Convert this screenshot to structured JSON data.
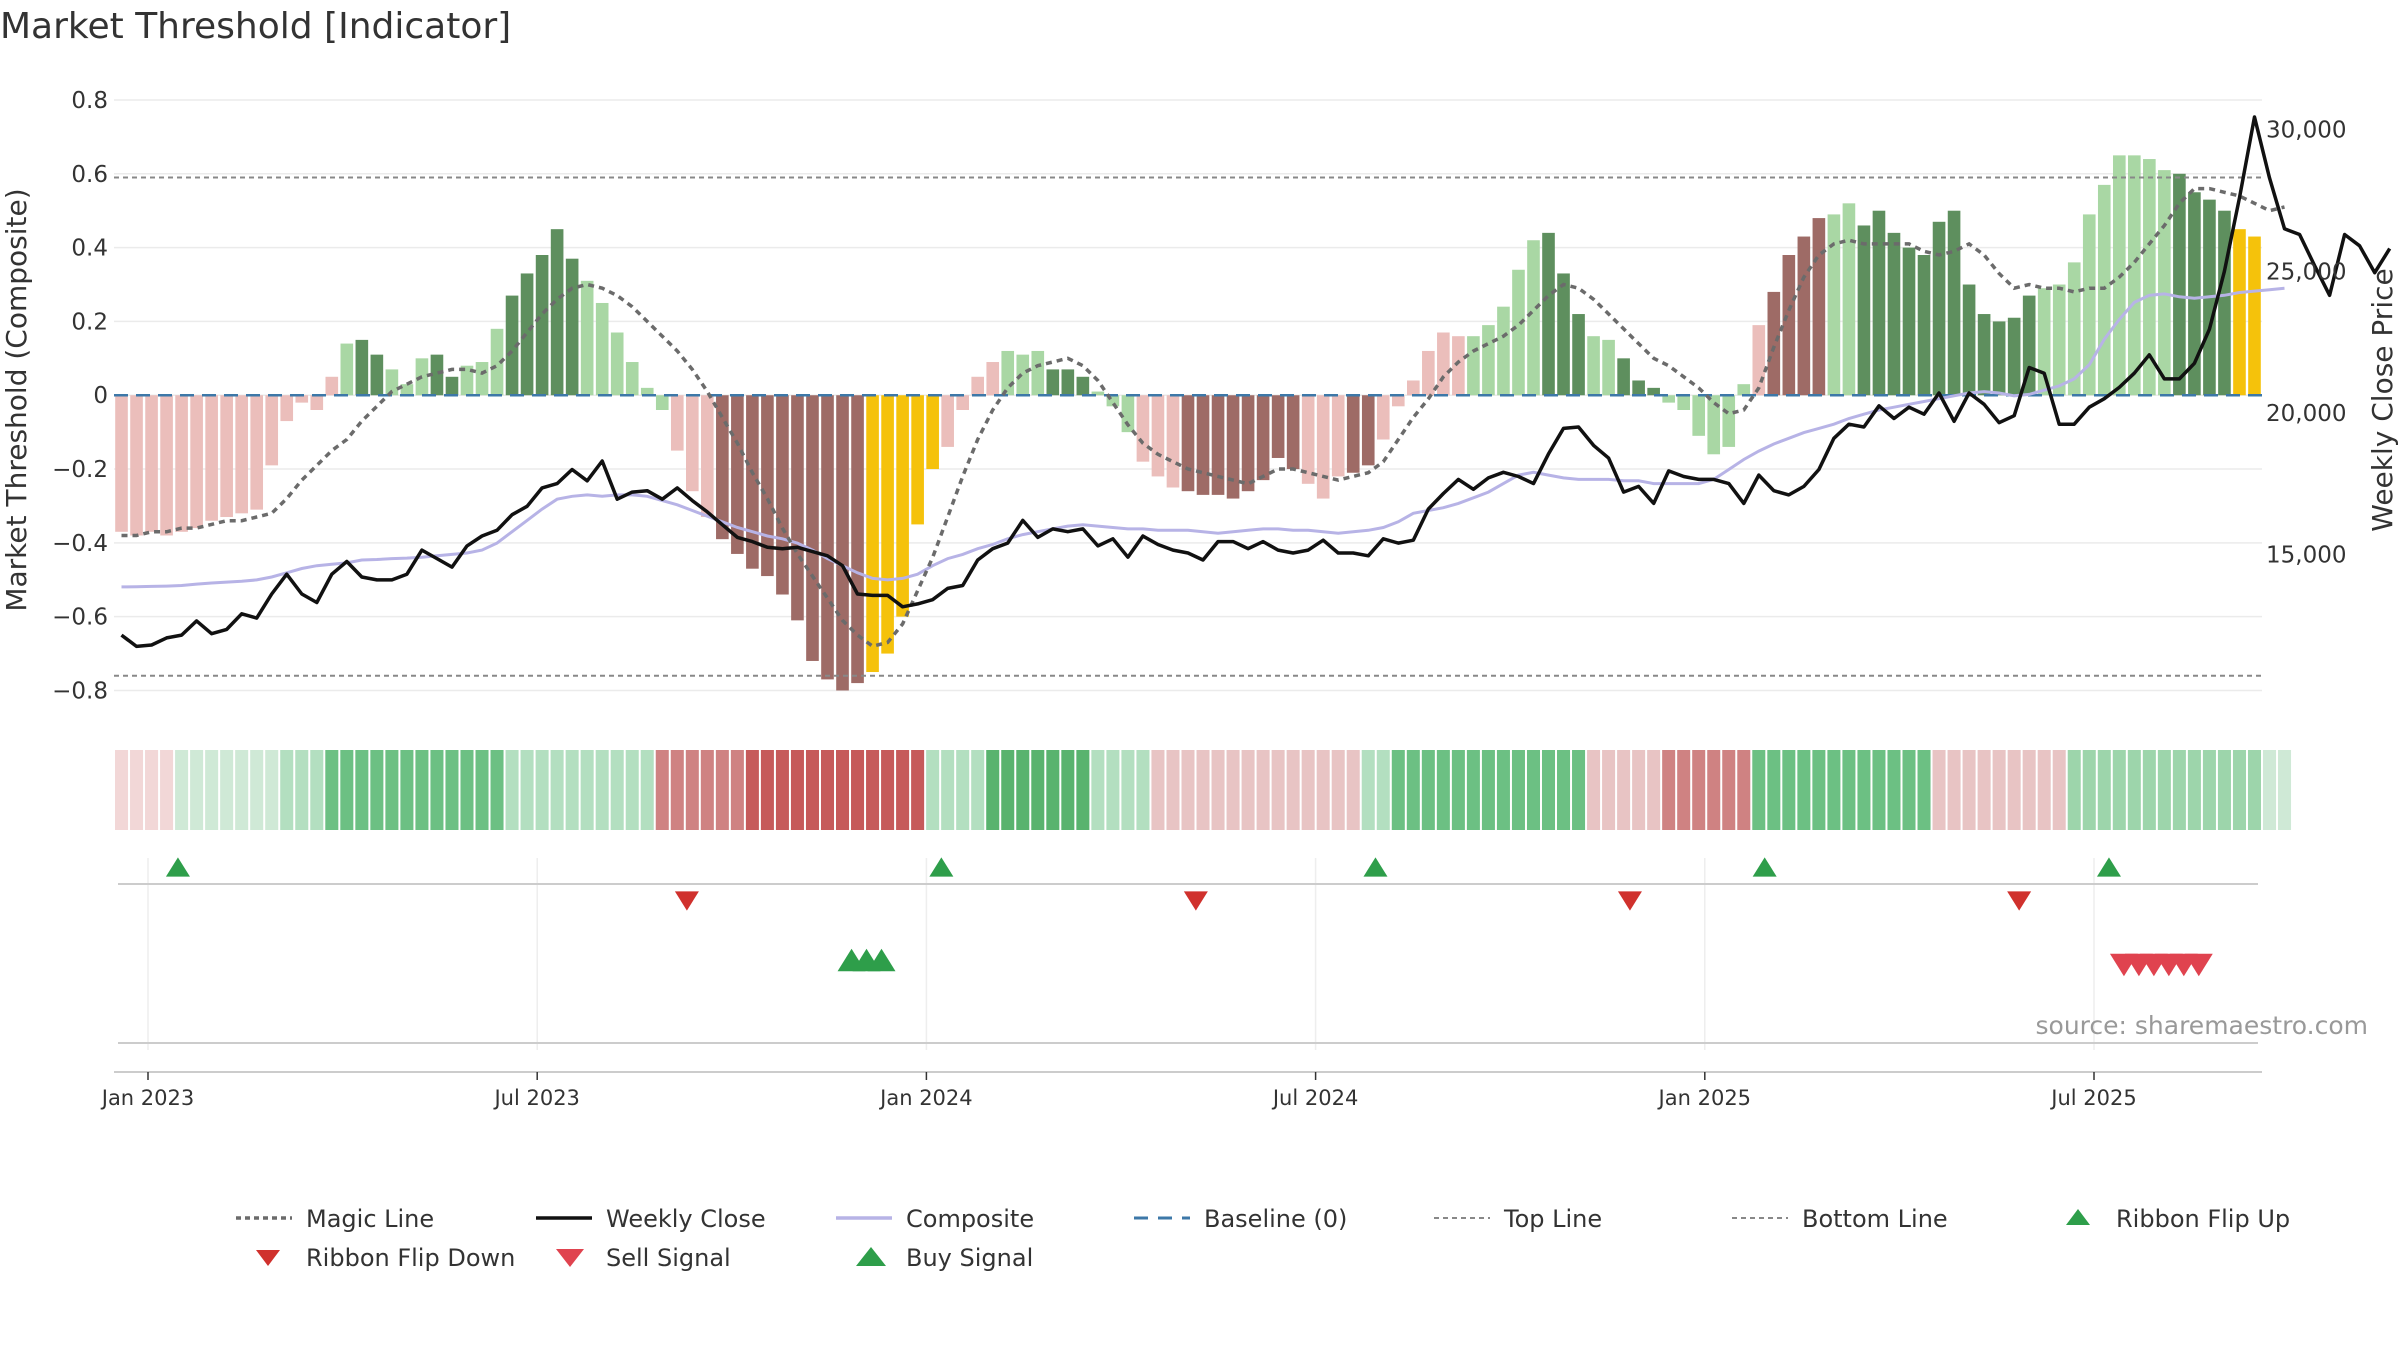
{
  "chart_data": {
    "type": "bar",
    "title": "Market Threshold [Indicator]",
    "ylabel_left": "Market Threshold (Composite)",
    "ylabel_right": "Weekly Close Price",
    "source": "source: sharemaestro.com",
    "ylim_left": [
      -0.88,
      0.8
    ],
    "yticks_left": [
      {
        "v": 0.8,
        "label": "0.8"
      },
      {
        "v": 0.6,
        "label": "0.6"
      },
      {
        "v": 0.4,
        "label": "0.4"
      },
      {
        "v": 0.2,
        "label": "0.2"
      },
      {
        "v": 0,
        "label": "0"
      },
      {
        "v": -0.2,
        "label": "−0.2"
      },
      {
        "v": -0.4,
        "label": "−0.4"
      },
      {
        "v": -0.6,
        "label": "−0.6"
      },
      {
        "v": -0.8,
        "label": "−0.8"
      }
    ],
    "ylim_right": [
      9150,
      31050
    ],
    "yticks_right": [
      {
        "v": 30000,
        "label": "30,000"
      },
      {
        "v": 25000,
        "label": "25,000"
      },
      {
        "v": 20000,
        "label": "20,000"
      },
      {
        "v": 15000,
        "label": "15,000"
      }
    ],
    "top_line": 0.59,
    "bottom_line": -0.76,
    "x_ticks": [
      {
        "week": 1,
        "label": "Jan 2023"
      },
      {
        "week": 27,
        "label": "Jul 2023"
      },
      {
        "week": 53,
        "label": "Jan 2024"
      },
      {
        "week": 79,
        "label": "Jul 2024"
      },
      {
        "week": 105,
        "label": "Jan 2025"
      },
      {
        "week": 131,
        "label": "Jul 2025"
      }
    ],
    "composite_bars": [
      -0.37,
      -0.38,
      -0.37,
      -0.38,
      -0.37,
      -0.36,
      -0.34,
      -0.33,
      -0.32,
      -0.31,
      -0.19,
      -0.07,
      -0.02,
      -0.04,
      0.05,
      0.14,
      0.15,
      0.11,
      0.07,
      0.03,
      0.1,
      0.11,
      0.05,
      0.08,
      0.09,
      0.18,
      0.27,
      0.33,
      0.38,
      0.45,
      0.37,
      0.31,
      0.25,
      0.17,
      0.09,
      0.02,
      -0.04,
      -0.15,
      -0.26,
      -0.33,
      -0.39,
      -0.43,
      -0.47,
      -0.49,
      -0.54,
      -0.61,
      -0.72,
      -0.77,
      -0.8,
      -0.78,
      -0.75,
      -0.7,
      -0.6,
      -0.35,
      -0.2,
      -0.14,
      -0.04,
      0.05,
      0.09,
      0.12,
      0.11,
      0.12,
      0.07,
      0.07,
      0.05,
      0.01,
      -0.03,
      -0.1,
      -0.18,
      -0.22,
      -0.25,
      -0.26,
      -0.27,
      -0.27,
      -0.28,
      -0.26,
      -0.23,
      -0.17,
      -0.2,
      -0.24,
      -0.28,
      -0.22,
      -0.21,
      -0.19,
      -0.12,
      -0.03,
      0.04,
      0.12,
      0.17,
      0.16,
      0.16,
      0.19,
      0.24,
      0.34,
      0.42,
      0.44,
      0.33,
      0.22,
      0.16,
      0.15,
      0.1,
      0.04,
      0.02,
      -0.02,
      -0.04,
      -0.11,
      -0.16,
      -0.14,
      0.03,
      0.19,
      0.28,
      0.38,
      0.43,
      0.48,
      0.49,
      0.52,
      0.46,
      0.5,
      0.44,
      0.4,
      0.38,
      0.47,
      0.5,
      0.3,
      0.22,
      0.2,
      0.21,
      0.27,
      0.29,
      0.3,
      0.36,
      0.49,
      0.57,
      0.65,
      0.65,
      0.64,
      0.61,
      0.6,
      0.55,
      0.53,
      0.5,
      0.45,
      0.43
    ],
    "bar_color_key": "d=dark green, l=light green, p=pink, b=brown, y=yellow",
    "bar_colors": "ppppppppppppppplddlllddllldddddllllllpppbbbbbbbbbbyyyyyppppllldddlllpppbbbbbbbbpppbbppppppllllldddlldddllllllpbbbbllddddddddddddlllllllllddddyyyyylllll",
    "magic_line": [
      -0.38,
      -0.38,
      -0.37,
      -0.37,
      -0.36,
      -0.36,
      -0.35,
      -0.34,
      -0.34,
      -0.33,
      -0.32,
      -0.28,
      -0.23,
      -0.19,
      -0.15,
      -0.12,
      -0.07,
      -0.03,
      0.01,
      0.03,
      0.05,
      0.06,
      0.07,
      0.07,
      0.06,
      0.08,
      0.12,
      0.17,
      0.22,
      0.26,
      0.29,
      0.3,
      0.29,
      0.27,
      0.24,
      0.2,
      0.16,
      0.12,
      0.07,
      0.01,
      -0.06,
      -0.13,
      -0.21,
      -0.28,
      -0.36,
      -0.43,
      -0.49,
      -0.55,
      -0.61,
      -0.65,
      -0.68,
      -0.67,
      -0.62,
      -0.53,
      -0.44,
      -0.33,
      -0.22,
      -0.12,
      -0.04,
      0.02,
      0.06,
      0.08,
      0.09,
      0.1,
      0.08,
      0.04,
      -0.02,
      -0.08,
      -0.13,
      -0.16,
      -0.18,
      -0.2,
      -0.21,
      -0.22,
      -0.23,
      -0.24,
      -0.22,
      -0.2,
      -0.2,
      -0.21,
      -0.22,
      -0.23,
      -0.22,
      -0.21,
      -0.18,
      -0.12,
      -0.06,
      -0.01,
      0.05,
      0.09,
      0.12,
      0.14,
      0.16,
      0.19,
      0.23,
      0.27,
      0.3,
      0.29,
      0.26,
      0.22,
      0.18,
      0.14,
      0.1,
      0.08,
      0.05,
      0.02,
      -0.02,
      -0.05,
      -0.04,
      0.02,
      0.13,
      0.23,
      0.32,
      0.38,
      0.41,
      0.42,
      0.41,
      0.41,
      0.41,
      0.41,
      0.39,
      0.38,
      0.39,
      0.41,
      0.38,
      0.33,
      0.29,
      0.3,
      0.29,
      0.29,
      0.28,
      0.29,
      0.29,
      0.32,
      0.36,
      0.41,
      0.46,
      0.52,
      0.56,
      0.56,
      0.55,
      0.54,
      0.52,
      0.5,
      0.51
    ],
    "composite_line_price": [
      13850,
      13860,
      13870,
      13880,
      13900,
      13950,
      13990,
      14020,
      14050,
      14100,
      14200,
      14350,
      14500,
      14600,
      14650,
      14700,
      14800,
      14820,
      14850,
      14870,
      14900,
      14950,
      15000,
      15050,
      15150,
      15400,
      15800,
      16200,
      16600,
      16950,
      17050,
      17100,
      17050,
      17100,
      17100,
      17050,
      16900,
      16750,
      16550,
      16350,
      16150,
      15950,
      15800,
      15650,
      15550,
      15400,
      15150,
      14850,
      14600,
      14350,
      14150,
      14100,
      14150,
      14300,
      14600,
      14850,
      15000,
      15200,
      15350,
      15550,
      15700,
      15800,
      15900,
      16000,
      16050,
      16000,
      15950,
      15900,
      15900,
      15850,
      15850,
      15850,
      15800,
      15750,
      15800,
      15850,
      15900,
      15900,
      15850,
      15850,
      15800,
      15750,
      15800,
      15850,
      15950,
      16150,
      16450,
      16550,
      16650,
      16800,
      17000,
      17200,
      17500,
      17800,
      17900,
      17800,
      17700,
      17650,
      17650,
      17650,
      17600,
      17600,
      17500,
      17500,
      17500,
      17500,
      17650,
      18000,
      18350,
      18650,
      18900,
      19100,
      19300,
      19450,
      19600,
      19800,
      19950,
      20100,
      20200,
      20300,
      20400,
      20500,
      20600,
      20700,
      20750,
      20700,
      20600,
      20650,
      20800,
      20950,
      21200,
      21700,
      22600,
      23300,
      23900,
      24150,
      24200,
      24100,
      24050,
      24100,
      24150,
      24250,
      24300,
      24350,
      24400
    ],
    "weekly_close": [
      12150,
      11750,
      11800,
      12050,
      12150,
      12650,
      12200,
      12350,
      12900,
      12750,
      13600,
      14300,
      13600,
      13300,
      14300,
      14750,
      14200,
      14100,
      14100,
      14300,
      15150,
      14850,
      14550,
      15300,
      15650,
      15850,
      16400,
      16700,
      17350,
      17500,
      18000,
      17600,
      18300,
      16950,
      17200,
      17250,
      16950,
      17350,
      16900,
      16500,
      16050,
      15600,
      15450,
      15250,
      15200,
      15250,
      15100,
      14950,
      14600,
      13600,
      13550,
      13550,
      13150,
      13250,
      13400,
      13800,
      13900,
      14800,
      15200,
      15400,
      16200,
      15600,
      15900,
      15800,
      15900,
      15300,
      15550,
      14900,
      15650,
      15350,
      15150,
      15050,
      14800,
      15450,
      15450,
      15200,
      15450,
      15150,
      15050,
      15150,
      15500,
      15050,
      15050,
      14950,
      15550,
      15400,
      15500,
      16600,
      17150,
      17650,
      17300,
      17700,
      17900,
      17750,
      17500,
      18550,
      19450,
      19500,
      18850,
      18400,
      17200,
      17400,
      16800,
      17950,
      17750,
      17650,
      17650,
      17500,
      16800,
      17800,
      17250,
      17100,
      17400,
      18000,
      19100,
      19600,
      19500,
      20250,
      19800,
      20200,
      19950,
      20700,
      19700,
      20700,
      20300,
      19650,
      19900,
      21600,
      21400,
      19600,
      19600,
      20200,
      20500,
      20900,
      21400,
      22050,
      21200,
      21200,
      21750,
      22950,
      25000,
      27600,
      30450,
      28300,
      26500,
      26300,
      25200,
      24150,
      26300,
      25900,
      24950,
      25800
    ]
  },
  "legend": [
    {
      "label": "Magic Line"
    },
    {
      "label": "Weekly Close"
    },
    {
      "label": "Composite"
    },
    {
      "label": "Baseline (0)"
    },
    {
      "label": "Top Line"
    },
    {
      "label": "Bottom Line"
    },
    {
      "label": "Ribbon Flip Up"
    },
    {
      "label": "Ribbon Flip Down"
    },
    {
      "label": "Sell Signal"
    },
    {
      "label": "Buy Signal"
    }
  ],
  "ribbon_flip_up_weeks": [
    3,
    54,
    83,
    109,
    132
  ],
  "ribbon_flip_down_weeks": [
    37,
    71,
    100,
    126
  ],
  "buy_signal_weeks": [
    48,
    49,
    50
  ],
  "sell_signal_weeks": [
    133,
    134,
    135,
    136,
    137,
    138
  ],
  "ribbon_colors": [
    "#f2d7d7",
    "#cfe9d6",
    "#b3dfc0",
    "#8fcf9f",
    "#6cc083",
    "#e8c4c4",
    "#cf8282",
    "#c65a5a",
    "#59b36e",
    "#9dd5ab"
  ],
  "ribbon_segments": [
    {
      "start": 0,
      "end": 4,
      "color": 0
    },
    {
      "start": 4,
      "end": 11,
      "color": 1
    },
    {
      "start": 11,
      "end": 14,
      "color": 2
    },
    {
      "start": 14,
      "end": 26,
      "color": 4
    },
    {
      "start": 26,
      "end": 36,
      "color": 2
    },
    {
      "start": 36,
      "end": 42,
      "color": 6
    },
    {
      "start": 42,
      "end": 54,
      "color": 7
    },
    {
      "start": 54,
      "end": 58,
      "color": 2
    },
    {
      "start": 58,
      "end": 65,
      "color": 8
    },
    {
      "start": 65,
      "end": 69,
      "color": 2
    },
    {
      "start": 69,
      "end": 83,
      "color": 5
    },
    {
      "start": 83,
      "end": 85,
      "color": 2
    },
    {
      "start": 85,
      "end": 98,
      "color": 4
    },
    {
      "start": 98,
      "end": 103,
      "color": 5
    },
    {
      "start": 103,
      "end": 109,
      "color": 6
    },
    {
      "start": 109,
      "end": 121,
      "color": 4
    },
    {
      "start": 121,
      "end": 130,
      "color": 5
    },
    {
      "start": 130,
      "end": 143,
      "color": 9
    },
    {
      "start": 143,
      "end": 145,
      "color": 1
    }
  ],
  "colors": {
    "dark_green": "#5e8f5e",
    "light_green": "#a9d7a4",
    "pink": "#ebbebb",
    "brown": "#9e6b66",
    "yellow": "#f5c20b",
    "close": "#111111",
    "composite_line": "#b7b3e6",
    "magic": "#6b6b6b",
    "baseline": "#3d78a8",
    "threshold": "#888888",
    "up": "#2e9e4a",
    "down": "#d0312d",
    "sell": "#e0434f"
  }
}
